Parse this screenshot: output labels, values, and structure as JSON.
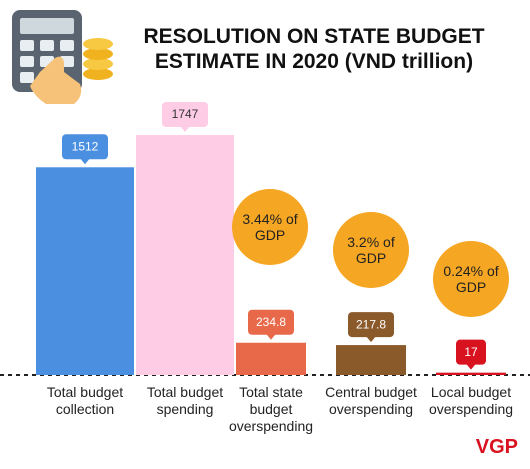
{
  "chart_data": {
    "type": "bar",
    "title": "RESOLUTION ON STATE BUDGET ESTIMATE IN 2020 (VND trillion)",
    "categories": [
      "Total budget collection",
      "Total budget spending",
      "Total state budget overspending",
      "Central budget overspending",
      "Local budget overspending"
    ],
    "values": [
      1512,
      1747,
      234.8,
      217.8,
      17
    ],
    "colors": [
      "#4a8fe0",
      "#ffcce6",
      "#e8694a",
      "#8b5a2b",
      "#d9121f"
    ],
    "label_text_colors": [
      "#ffffff",
      "#333333",
      "#ffffff",
      "#ffffff",
      "#ffffff"
    ],
    "annotations": [
      "3.44% of GDP",
      "3.2% of GDP",
      "0.24% of GDP"
    ],
    "annotation_color": "#f5a623",
    "brand": "VGP"
  }
}
